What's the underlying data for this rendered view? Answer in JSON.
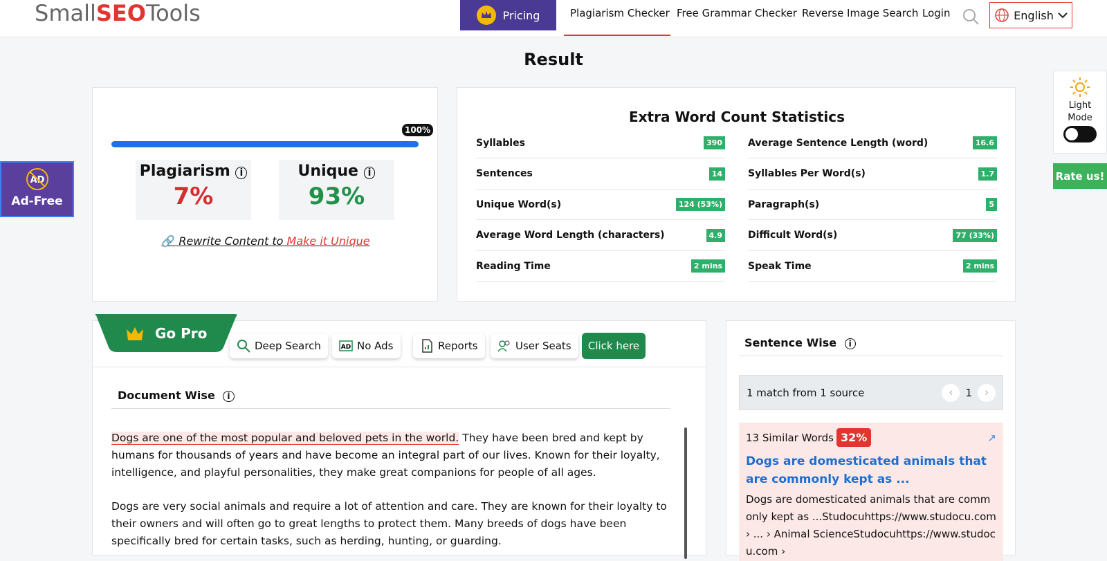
{
  "header": {
    "logo": {
      "part1": "Small",
      "part2": "SEO",
      "part3": "Tools"
    },
    "pricing": "Pricing",
    "nav": [
      "Plagiarism Checker",
      "Free Grammar Checker",
      "Reverse Image Search",
      "Login"
    ],
    "language": "English"
  },
  "result_title": "Result",
  "summary": {
    "progress_label": "100%",
    "plagiarism": {
      "label": "Plagiarism",
      "value": "7%"
    },
    "unique": {
      "label": "Unique",
      "value": "93%"
    },
    "rewrite": {
      "text": "Rewrite Content to ",
      "link": "Make it Unique"
    }
  },
  "stats": {
    "title": "Extra Word Count Statistics",
    "left": [
      [
        "Syllables",
        "390"
      ],
      [
        "Sentences",
        "14"
      ],
      [
        "Unique Word(s)",
        "124 (53%)"
      ],
      [
        "Average Word Length (characters)",
        "4.9"
      ],
      [
        "Reading Time",
        "2 mins"
      ]
    ],
    "right": [
      [
        "Average Sentence Length (word)",
        "16.6"
      ],
      [
        "Syllables Per Word(s)",
        "1.7"
      ],
      [
        "Paragraph(s)",
        "5"
      ],
      [
        "Difficult Word(s)",
        "77 (33%)"
      ],
      [
        "Speak Time",
        "2 mins"
      ]
    ]
  },
  "side": {
    "ad_free": "Ad-Free",
    "light": "Light",
    "mode": "Mode",
    "rate": "Rate us!"
  },
  "go_pro": {
    "title": "Go Pro",
    "features": [
      "Deep Search",
      "No Ads",
      "Reports",
      "User Seats"
    ],
    "button": "Click here"
  },
  "document": {
    "title": "Document Wise",
    "highlight": "Dogs are one of the most popular and beloved pets in the world.",
    "paragraph1_rest": " They have been bred and kept by humans for thousands of years and have become an integral part of our lives. Known for their loyalty, intelligence, and playful personalities, they make great companions for people of all ages.",
    "paragraph2": "Dogs are very social animals and require a lot of attention and care. They are known for their loyalty to their owners and will often go to great lengths to protect them. Many breeds of dogs have been specifically bred for certain tasks, such as herding, hunting, or guarding."
  },
  "sentence": {
    "title": "Sentence Wise",
    "matches": "1 match from 1 source",
    "page": "1",
    "similar": "13 Similar Words",
    "percent": "32%",
    "link": "Dogs are domesticated animals that are commonly kept as ...",
    "snippet": "Dogs are domesticated animals that are commonly kept as ...Studocuhttps://www.studocu.com › ... › Animal ScienceStudocuhttps://www.studocu.com ›"
  }
}
